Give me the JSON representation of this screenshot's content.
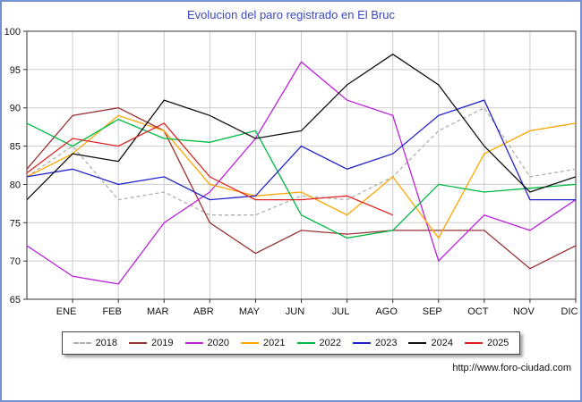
{
  "window": {
    "title": "Evolucion del paro registrado en El Bruc"
  },
  "footer": {
    "url": "http://www.foro-ciudad.com"
  },
  "colors": {
    "title-color": "#3a47c0",
    "frame-border": "#7591cf",
    "grid-line": "#cccccc",
    "axis-line": "#333333"
  },
  "chart_data": {
    "type": "line",
    "title": "Evolucion del paro registrado en El Bruc",
    "xlabel": "",
    "ylabel": "",
    "x_categories": [
      "",
      "ENE",
      "FEB",
      "MAR",
      "ABR",
      "MAY",
      "JUN",
      "JUL",
      "AGO",
      "SEP",
      "OCT",
      "NOV",
      "DIC"
    ],
    "ylim": [
      65,
      100
    ],
    "y_ticks": [
      65,
      70,
      75,
      80,
      85,
      90,
      95,
      100
    ],
    "grid": true,
    "legend_position": "bottom",
    "series": [
      {
        "name": "2018",
        "color": "#b0b0b0",
        "dash": "4,3",
        "values": [
          81,
          85,
          78,
          79,
          76,
          76,
          78.5,
          78,
          81,
          87,
          90,
          81,
          82
        ]
      },
      {
        "name": "2019",
        "color": "#993333",
        "dash": "",
        "values": [
          82,
          89,
          90,
          87,
          75,
          71,
          74,
          73.5,
          74,
          74,
          74,
          69,
          72
        ]
      },
      {
        "name": "2020",
        "color": "#bb22dd",
        "dash": "",
        "values": [
          72,
          68,
          67,
          75,
          79,
          86,
          96,
          91,
          89,
          70,
          76,
          74,
          78
        ]
      },
      {
        "name": "2021",
        "color": "#ffa500",
        "dash": "",
        "values": [
          81,
          84,
          89,
          87,
          80,
          78.5,
          79,
          76,
          81,
          73,
          84,
          87,
          88
        ]
      },
      {
        "name": "2022",
        "color": "#00bb44",
        "dash": "",
        "values": [
          88,
          85,
          88.5,
          86,
          85.5,
          87,
          76,
          73,
          74,
          80,
          79,
          79.5,
          80
        ]
      },
      {
        "name": "2023",
        "color": "#2222cc",
        "dash": "",
        "values": [
          81,
          82,
          80,
          81,
          78,
          78.5,
          85,
          82,
          84,
          89,
          91,
          78,
          78
        ]
      },
      {
        "name": "2024",
        "color": "#111111",
        "dash": "",
        "values": [
          78,
          84,
          83,
          91,
          89,
          86,
          87,
          93,
          97,
          93,
          85,
          79,
          81
        ]
      },
      {
        "name": "2025",
        "color": "#dd2222",
        "dash": "",
        "values": [
          81.5,
          86,
          85,
          88,
          81,
          78,
          78,
          78.5,
          76,
          null,
          null,
          null,
          null
        ]
      }
    ]
  }
}
